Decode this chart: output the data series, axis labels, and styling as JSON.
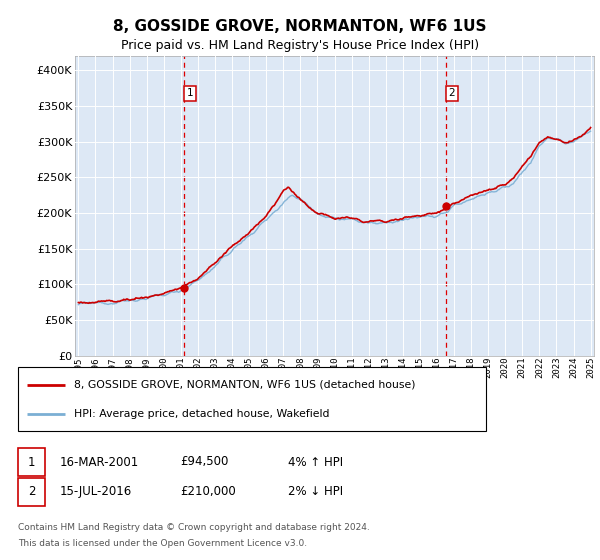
{
  "title": "8, GOSSIDE GROVE, NORMANTON, WF6 1US",
  "subtitle": "Price paid vs. HM Land Registry's House Price Index (HPI)",
  "ylim": [
    0,
    420000
  ],
  "yticks": [
    0,
    50000,
    100000,
    150000,
    200000,
    250000,
    300000,
    350000,
    400000
  ],
  "plot_bg_color": "#dde8f5",
  "outer_bg_color": "#ffffff",
  "grid_color": "#ffffff",
  "red_line_color": "#cc0000",
  "blue_line_color": "#7bafd4",
  "marker_color": "#cc0000",
  "dashed_line_color": "#dd0000",
  "legend_entry1": "8, GOSSIDE GROVE, NORMANTON, WF6 1US (detached house)",
  "legend_entry2": "HPI: Average price, detached house, Wakefield",
  "sale1_label": "1",
  "sale1_date": "16-MAR-2001",
  "sale1_price": "£94,500",
  "sale1_hpi": "4% ↑ HPI",
  "sale1_year": 2001.21,
  "sale1_value": 94500,
  "sale2_label": "2",
  "sale2_date": "15-JUL-2016",
  "sale2_price": "£210,000",
  "sale2_hpi": "2% ↓ HPI",
  "sale2_year": 2016.54,
  "sale2_value": 210000,
  "footer_line1": "Contains HM Land Registry data © Crown copyright and database right 2024.",
  "footer_line2": "This data is licensed under the Open Government Licence v3.0."
}
